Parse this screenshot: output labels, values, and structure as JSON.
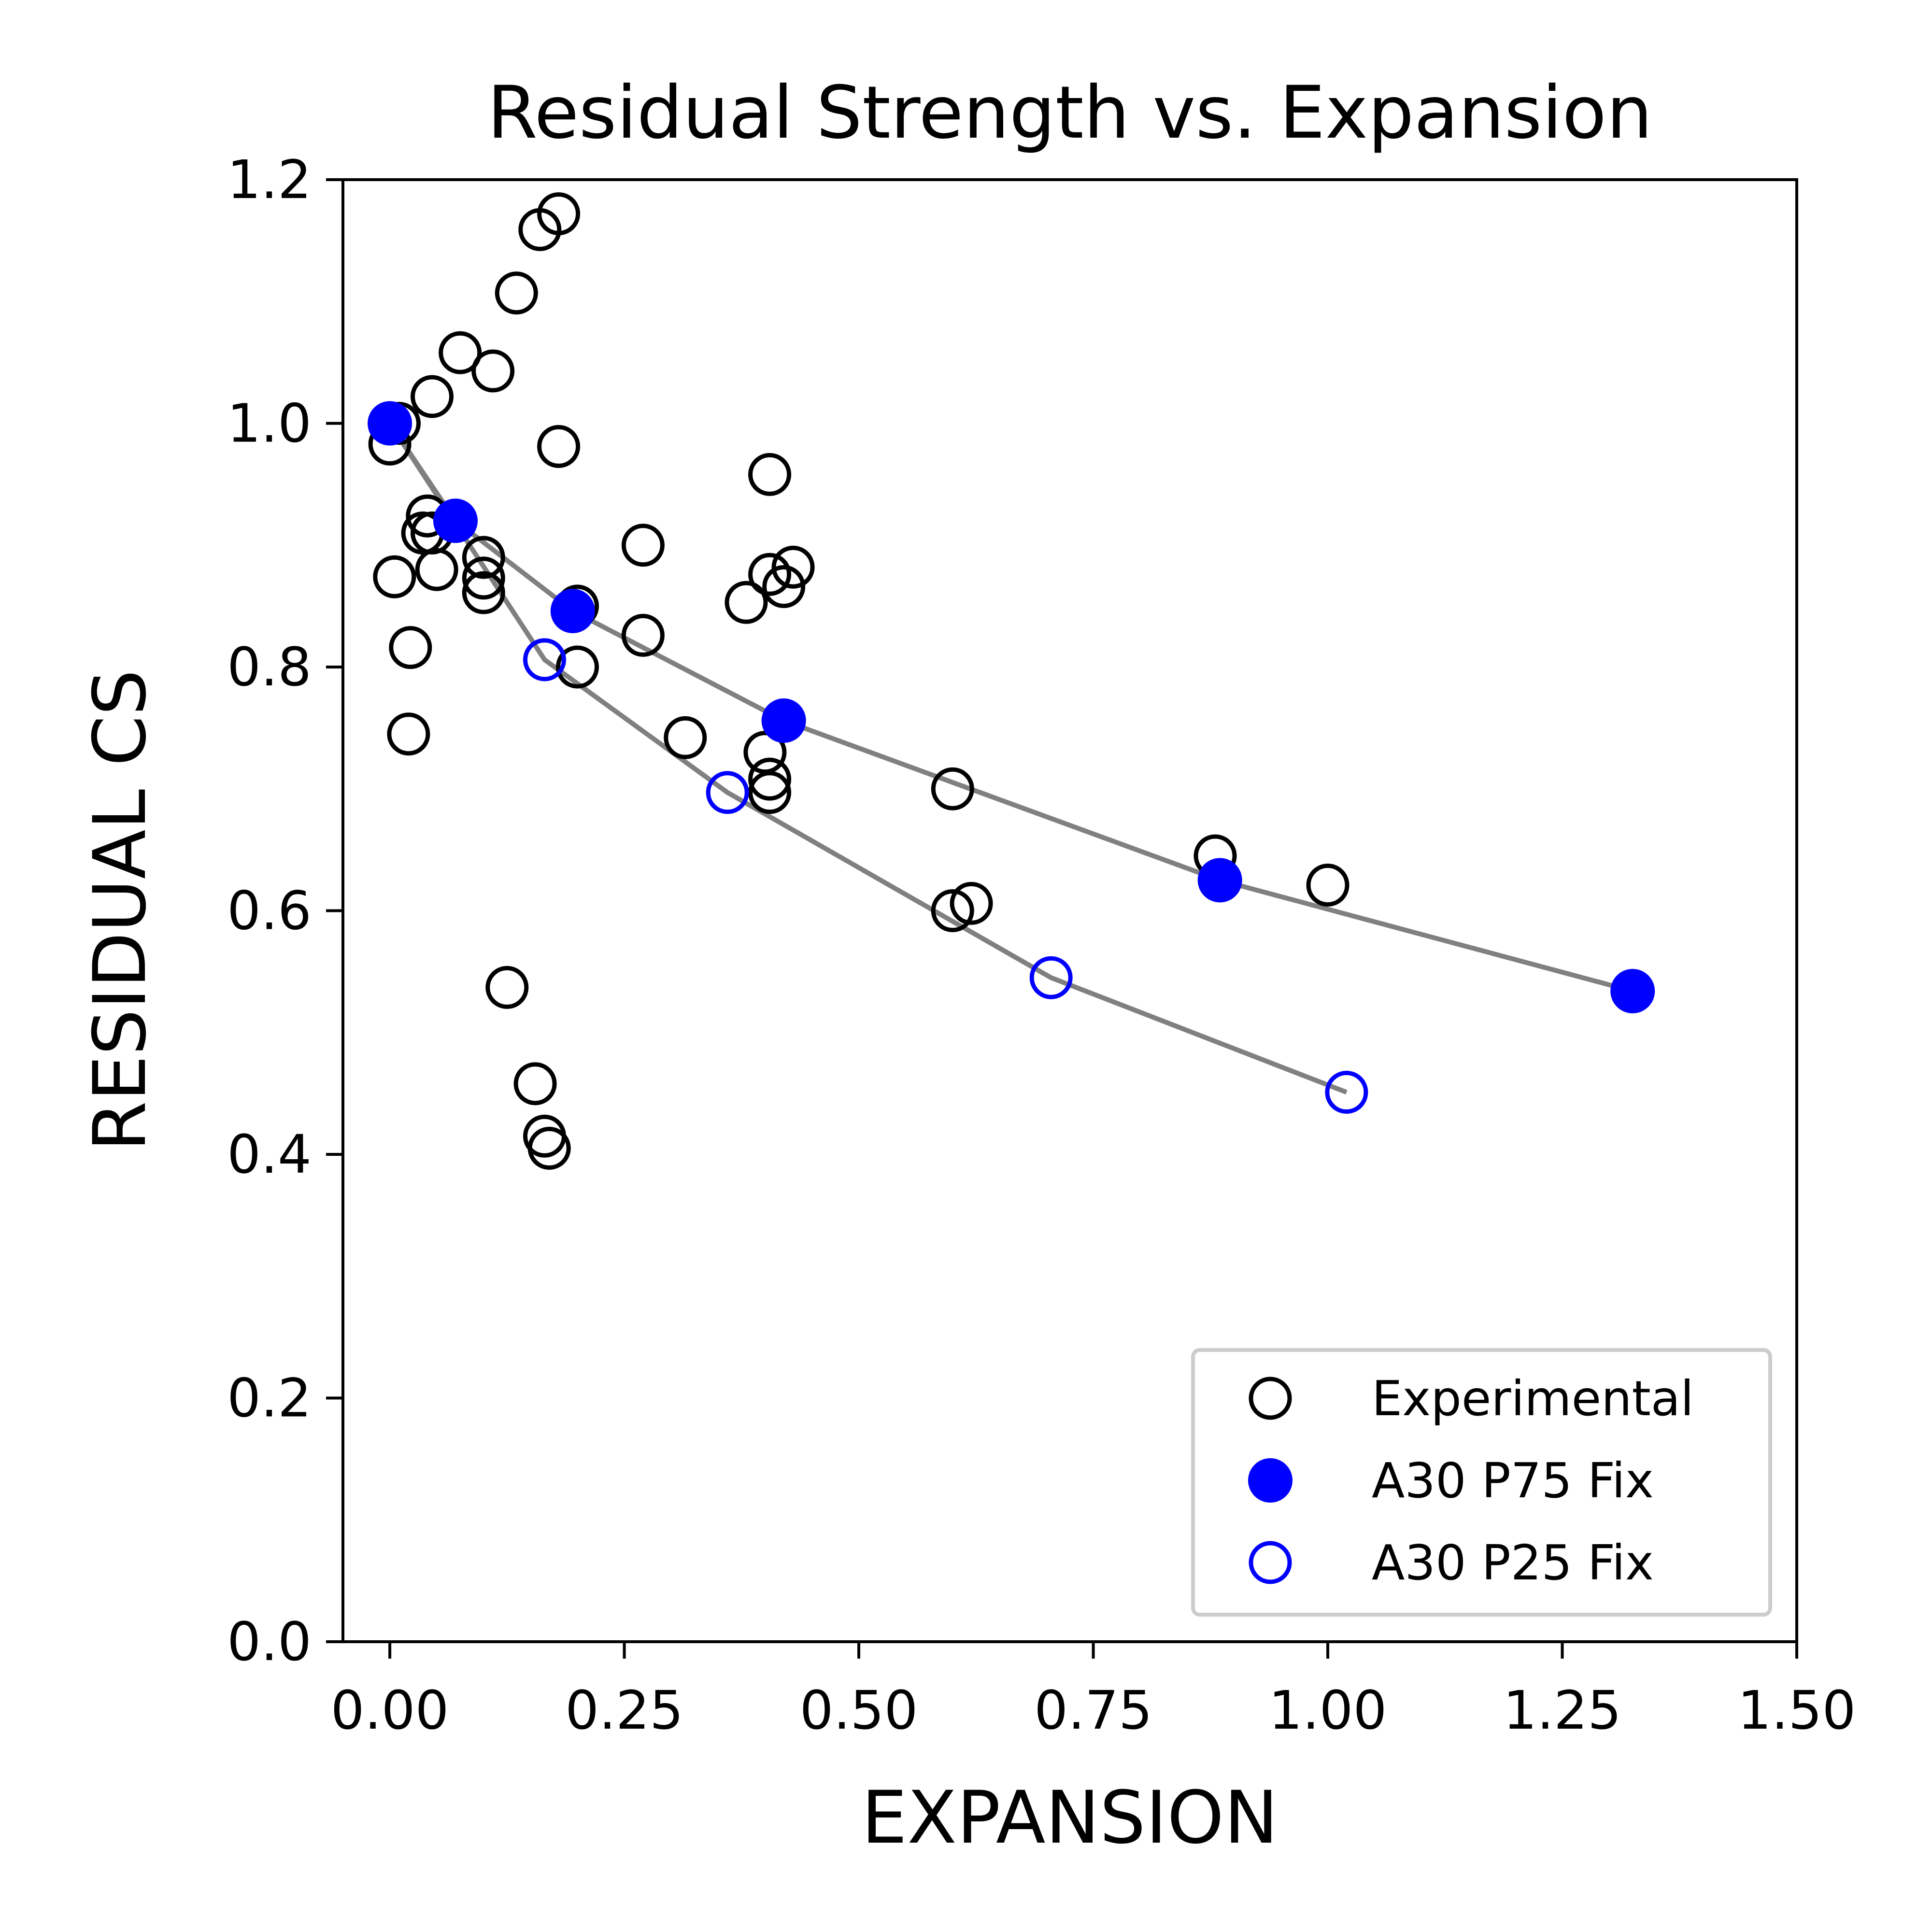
{
  "chart_data": {
    "type": "scatter",
    "title": "Residual Strength vs. Expansion",
    "xlabel": "EXPANSION",
    "ylabel": "RESIDUAL CS",
    "xlim": [
      -0.05,
      1.5
    ],
    "ylim": [
      0.0,
      1.2
    ],
    "xticks": [
      "0.00",
      "0.25",
      "0.50",
      "0.75",
      "1.00",
      "1.25",
      "1.50"
    ],
    "yticks": [
      "0.0",
      "0.2",
      "0.4",
      "0.6",
      "0.8",
      "1.0",
      "1.2"
    ],
    "grid": false,
    "legend_position": "lower-right",
    "colors": {
      "experimental": "#000000",
      "model": "#0000ff",
      "line": "#808080"
    },
    "series": [
      {
        "name": "Experimental",
        "marker": "open-circle",
        "color": "#000000",
        "connected": false,
        "points": [
          [
            0.0,
            0.983
          ],
          [
            0.01,
            1.0
          ],
          [
            0.005,
            0.874
          ],
          [
            0.022,
            0.816
          ],
          [
            0.02,
            0.745
          ],
          [
            0.045,
            1.022
          ],
          [
            0.075,
            1.058
          ],
          [
            0.11,
            1.043
          ],
          [
            0.135,
            1.107
          ],
          [
            0.16,
            1.159
          ],
          [
            0.18,
            1.172
          ],
          [
            0.18,
            0.981
          ],
          [
            0.04,
            0.924
          ],
          [
            0.035,
            0.91
          ],
          [
            0.045,
            0.91
          ],
          [
            0.05,
            0.88
          ],
          [
            0.1,
            0.89
          ],
          [
            0.1,
            0.873
          ],
          [
            0.1,
            0.861
          ],
          [
            0.2,
            0.85
          ],
          [
            0.2,
            0.8
          ],
          [
            0.27,
            0.9
          ],
          [
            0.27,
            0.826
          ],
          [
            0.315,
            0.742
          ],
          [
            0.4,
            0.73
          ],
          [
            0.405,
            0.708
          ],
          [
            0.405,
            0.697
          ],
          [
            0.38,
            0.853
          ],
          [
            0.405,
            0.876
          ],
          [
            0.42,
            0.866
          ],
          [
            0.43,
            0.882
          ],
          [
            0.405,
            0.958
          ],
          [
            0.125,
            0.537
          ],
          [
            0.155,
            0.458
          ],
          [
            0.165,
            0.415
          ],
          [
            0.17,
            0.405
          ],
          [
            0.6,
            0.7
          ],
          [
            0.6,
            0.6
          ],
          [
            0.62,
            0.606
          ],
          [
            0.88,
            0.645
          ],
          [
            1.0,
            0.621
          ]
        ]
      },
      {
        "name": "A30 P75 Fix",
        "marker": "filled-circle",
        "color": "#0000ff",
        "connected": true,
        "points": [
          [
            0.0,
            1.0
          ],
          [
            0.07,
            0.92
          ],
          [
            0.195,
            0.846
          ],
          [
            0.42,
            0.756
          ],
          [
            0.885,
            0.625
          ],
          [
            1.325,
            0.534
          ]
        ]
      },
      {
        "name": "A30 P25 Fix",
        "marker": "open-circle",
        "color": "#0000ff",
        "connected": true,
        "points": [
          [
            0.0,
            1.0
          ],
          [
            0.165,
            0.806
          ],
          [
            0.36,
            0.697
          ],
          [
            0.705,
            0.545
          ],
          [
            1.02,
            0.451
          ]
        ]
      }
    ]
  }
}
